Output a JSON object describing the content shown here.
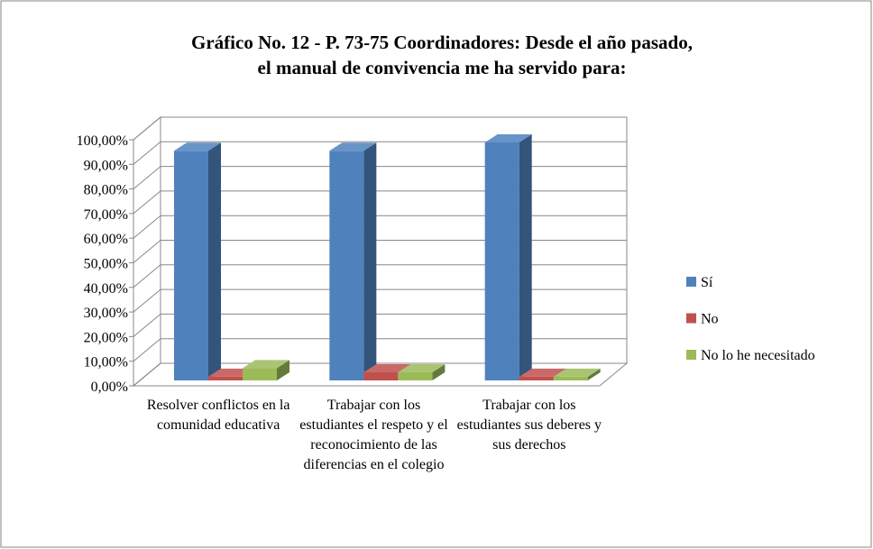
{
  "chart_data": {
    "type": "bar3d",
    "title": "Gráfico No. 12 - P. 73-75 Coordinadores: Desde el año pasado, el manual de convivencia me ha servido para:",
    "categories": [
      "Resolver conflictos en la comunidad educativa",
      "Trabajar con los estudiantes el respeto y el reconocimiento de las diferencias en el colegio",
      "Trabajar con los estudiantes sus deberes y sus derechos"
    ],
    "series": [
      {
        "name": "Sí",
        "color": "#4f81bd",
        "values": [
          93.3,
          93.3,
          96.7
        ]
      },
      {
        "name": "No",
        "color": "#c0504d",
        "values": [
          1.5,
          3.3,
          1.5
        ]
      },
      {
        "name": "No lo he necesitado",
        "color": "#9bbb59",
        "values": [
          5,
          3.3,
          1.5
        ]
      }
    ],
    "ylim": [
      0,
      100
    ],
    "yticks": [
      {
        "value": 0,
        "label": "0,00%"
      },
      {
        "value": 10,
        "label": "10,00%"
      },
      {
        "value": 20,
        "label": "20,00%"
      },
      {
        "value": 30,
        "label": "30,00%"
      },
      {
        "value": 40,
        "label": "40,00%"
      },
      {
        "value": 50,
        "label": "50,00%"
      },
      {
        "value": 60,
        "label": "60,00%"
      },
      {
        "value": 70,
        "label": "70,00%"
      },
      {
        "value": 80,
        "label": "80,00%"
      },
      {
        "value": 90,
        "label": "90,00%"
      },
      {
        "value": 100,
        "label": "100,00%"
      }
    ],
    "grid": true,
    "legend": "right"
  }
}
